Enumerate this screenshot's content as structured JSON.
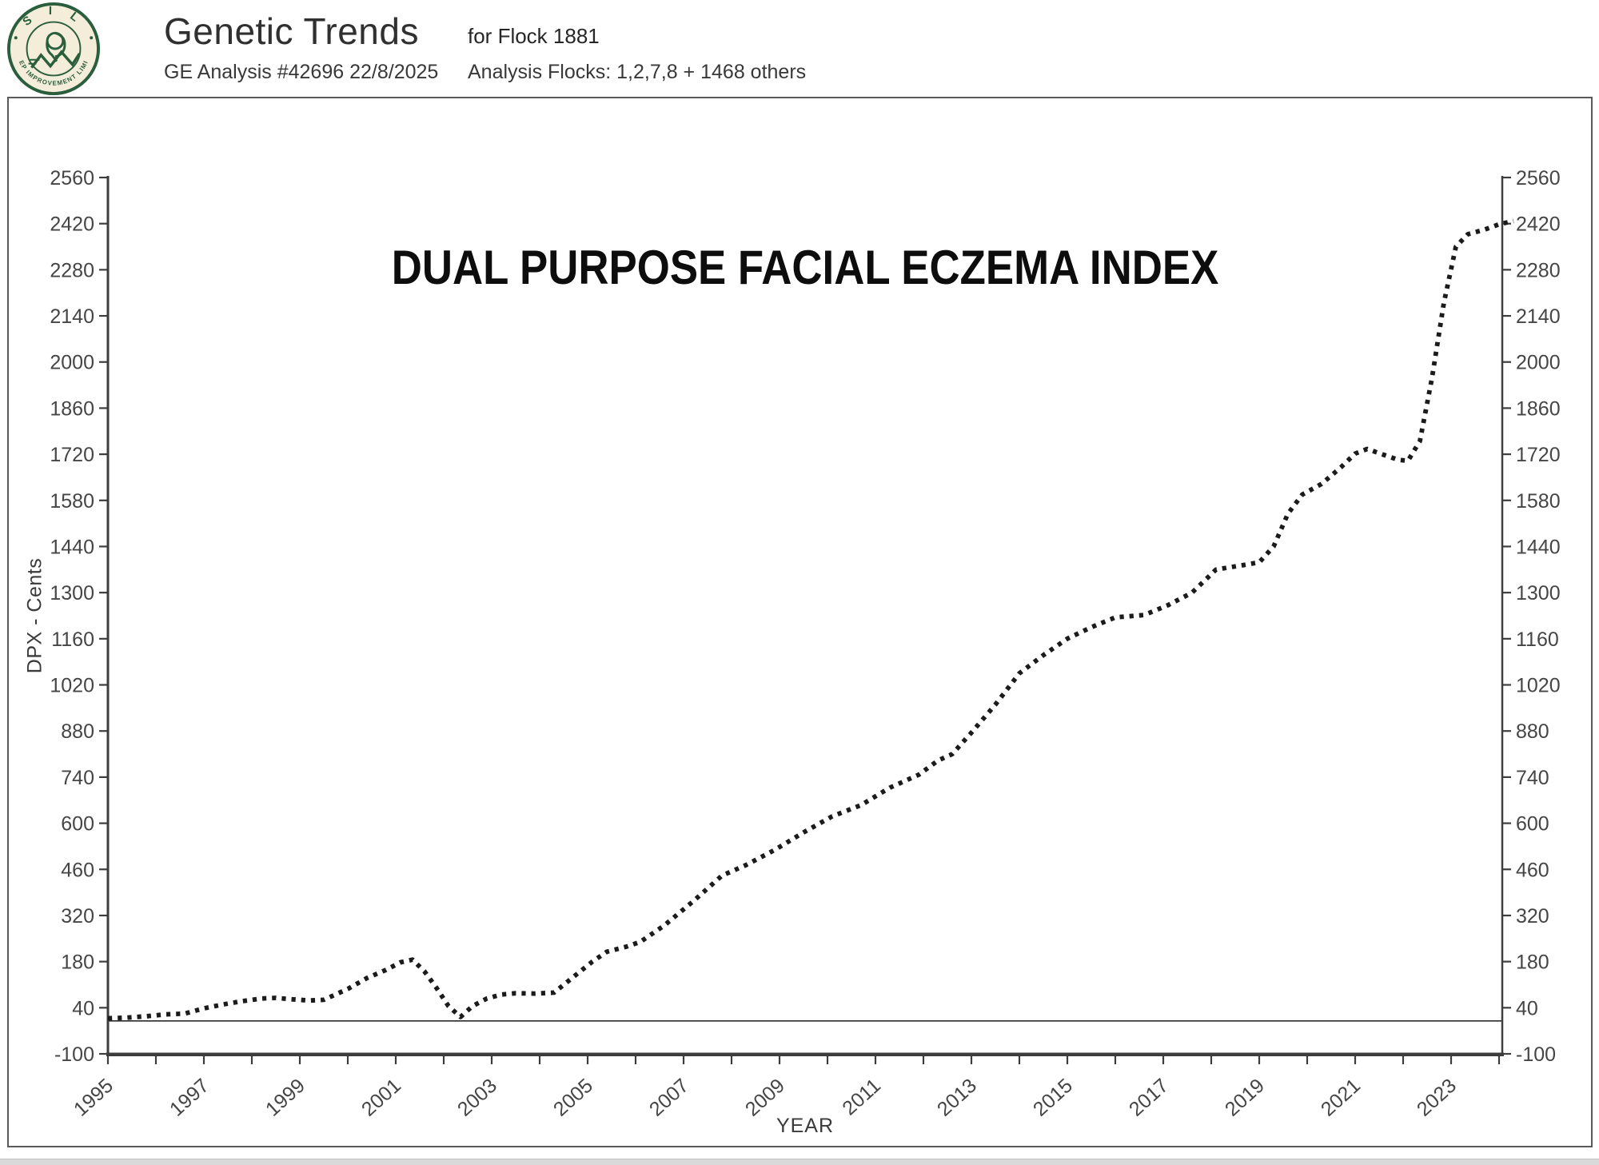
{
  "header": {
    "logo": {
      "top_text": "S I L",
      "ring_text": "SHEEP IMPROVEMENT LIMITED",
      "green": "#2a5e3c",
      "cream": "#f3edda"
    },
    "title": "Genetic Trends",
    "analysis_line": "GE Analysis #42696 22/8/2025",
    "flock_line": "for Flock 1881",
    "flocks_detail": "Analysis Flocks: 1,2,7,8 + 1468 others"
  },
  "chart_data": {
    "type": "line",
    "title": "DUAL PURPOSE FACIAL ECZEMA INDEX",
    "xlabel": "YEAR",
    "ylabel": "DPX - Cents",
    "ylim": [
      -100,
      2560
    ],
    "ytick_step": 140,
    "ytick_labels": [
      "-100",
      "40",
      "180",
      "320",
      "460",
      "600",
      "740",
      "880",
      "1020",
      "1160",
      "1300",
      "1440",
      "1580",
      "1720",
      "1860",
      "2000",
      "2140",
      "2280",
      "2420",
      "2560"
    ],
    "x_start_year": 1995,
    "x_end_year": 2024,
    "x_label_step": 2,
    "xtick_labels": [
      "1995",
      "1997",
      "1999",
      "2001",
      "2003",
      "2005",
      "2007",
      "2009",
      "2011",
      "2013",
      "2015",
      "2017",
      "2019",
      "2021",
      "2023"
    ],
    "zero_line": 0,
    "grid": false,
    "legend": "none",
    "line_style": "dotted",
    "line_color": "#1b1b1b",
    "axis_color": "#3d3d3d",
    "tick_label_color": "#454545",
    "series": [
      {
        "name": "Dual Purpose Facial Eczema Index (DPX cents)",
        "points": [
          [
            1995.0,
            8
          ],
          [
            1995.4,
            10
          ],
          [
            1995.8,
            14
          ],
          [
            1996.2,
            20
          ],
          [
            1996.6,
            22
          ],
          [
            1997.0,
            38
          ],
          [
            1997.4,
            50
          ],
          [
            1997.8,
            60
          ],
          [
            1998.2,
            68
          ],
          [
            1998.5,
            70
          ],
          [
            1998.8,
            66
          ],
          [
            1999.2,
            62
          ],
          [
            1999.5,
            64
          ],
          [
            2000.0,
            97
          ],
          [
            2000.4,
            130
          ],
          [
            2000.8,
            155
          ],
          [
            2001.1,
            178
          ],
          [
            2001.35,
            186
          ],
          [
            2001.6,
            150
          ],
          [
            2001.85,
            100
          ],
          [
            2002.1,
            45
          ],
          [
            2002.35,
            12
          ],
          [
            2002.6,
            45
          ],
          [
            2002.9,
            68
          ],
          [
            2003.2,
            80
          ],
          [
            2003.5,
            84
          ],
          [
            2003.9,
            83
          ],
          [
            2004.3,
            86
          ],
          [
            2004.8,
            145
          ],
          [
            2005.1,
            180
          ],
          [
            2005.4,
            210
          ],
          [
            2005.8,
            225
          ],
          [
            2006.1,
            240
          ],
          [
            2006.6,
            290
          ],
          [
            2007.2,
            363
          ],
          [
            2007.8,
            441
          ],
          [
            2008.3,
            473
          ],
          [
            2008.9,
            519
          ],
          [
            2009.5,
            572
          ],
          [
            2010.1,
            621
          ],
          [
            2010.7,
            655
          ],
          [
            2011.3,
            708
          ],
          [
            2011.9,
            747
          ],
          [
            2012.3,
            790
          ],
          [
            2012.6,
            810
          ],
          [
            2013.0,
            875
          ],
          [
            2013.5,
            960
          ],
          [
            2014.0,
            1055
          ],
          [
            2014.5,
            1110
          ],
          [
            2015.0,
            1160
          ],
          [
            2015.5,
            1195
          ],
          [
            2016.0,
            1225
          ],
          [
            2016.6,
            1232
          ],
          [
            2017.1,
            1262
          ],
          [
            2017.6,
            1300
          ],
          [
            2018.1,
            1370
          ],
          [
            2018.6,
            1382
          ],
          [
            2019.0,
            1392
          ],
          [
            2019.3,
            1440
          ],
          [
            2019.6,
            1540
          ],
          [
            2019.9,
            1598
          ],
          [
            2020.3,
            1630
          ],
          [
            2020.7,
            1680
          ],
          [
            2021.0,
            1722
          ],
          [
            2021.25,
            1736
          ],
          [
            2021.6,
            1718
          ],
          [
            2021.9,
            1703
          ],
          [
            2022.1,
            1700
          ],
          [
            2022.35,
            1760
          ],
          [
            2022.6,
            1950
          ],
          [
            2022.85,
            2180
          ],
          [
            2023.1,
            2350
          ],
          [
            2023.35,
            2388
          ],
          [
            2023.7,
            2402
          ],
          [
            2024.0,
            2418
          ],
          [
            2024.3,
            2428
          ]
        ]
      }
    ]
  },
  "annual_values_estimate": {
    "1995": 10,
    "1996": 20,
    "1997": 45,
    "1998": 68,
    "1999": 62,
    "2000": 110,
    "2001": 185,
    "2002": 15,
    "2003": 80,
    "2004": 86,
    "2005": 195,
    "2006": 245,
    "2007": 360,
    "2008": 465,
    "2009": 545,
    "2010": 615,
    "2011": 690,
    "2012": 775,
    "2013": 875,
    "2014": 1055,
    "2015": 1160,
    "2016": 1225,
    "2017": 1260,
    "2018": 1365,
    "2019": 1392,
    "2020": 1610,
    "2021": 1725,
    "2022": 1700,
    "2023": 2345,
    "2024": 2420
  }
}
